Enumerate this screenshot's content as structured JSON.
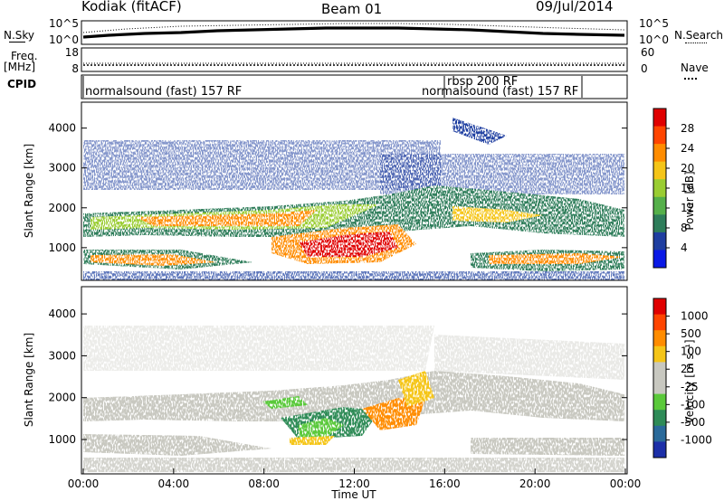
{
  "header": {
    "radar": "Kodiak (fitACF)",
    "beam": "Beam 01",
    "date": "09/Jul/2014"
  },
  "panels": {
    "nsky_label": "N.Sky",
    "nsearch_label": "N.Search",
    "nave_label": "Nave",
    "freq_label": "Freq.",
    "freq_unit": "[MHz]",
    "cpid_label": "CPID",
    "nsky_ticks": [
      "10^5",
      "10^0"
    ],
    "nsearch_ticks": [
      "10^5",
      "10^0"
    ],
    "freq_ticks": [
      "18",
      "8"
    ],
    "nave_ticks": [
      "60",
      "0"
    ],
    "cpid_entries": [
      "normalsound (fast) 157 RF",
      "rbsp 200 RF",
      "normalsound (fast) 157 RF"
    ]
  },
  "chart_data": [
    {
      "type": "heatmap",
      "name": "power",
      "ylabel": "Slant Range [km]",
      "yticks": [
        1000,
        2000,
        3000,
        4000
      ],
      "ylim": [
        180,
        4650
      ],
      "colorbar_label": "Power [dB]",
      "colorbar_ticks": [
        "28",
        "24",
        "20",
        "16",
        "12",
        "8",
        "4"
      ],
      "colorbar_colors": [
        "#0a19e6",
        "#1f3ea0",
        "#2e7d5a",
        "#55b04a",
        "#9acd32",
        "#f5c518",
        "#ff8c00",
        "#ff4500",
        "#e00000"
      ]
    },
    {
      "type": "heatmap",
      "name": "velocity",
      "ylabel": "Slant Range [km]",
      "yticks": [
        1000,
        2000,
        3000,
        4000
      ],
      "ylim": [
        180,
        4650
      ],
      "colorbar_label": "Velocity [m s⁻¹]",
      "colorbar_ticks": [
        "1000",
        "500",
        "100",
        "25",
        "-25",
        "-100",
        "-500",
        "-1000"
      ],
      "colorbar_colors": [
        "#1c2fa8",
        "#2a6a9a",
        "#2e8b57",
        "#5ac93a",
        "#c8c8c0",
        "#c8c8c0",
        "#f5c518",
        "#ff8c00",
        "#ff4500",
        "#e00000"
      ]
    }
  ],
  "xaxis": {
    "label": "Time UT",
    "ticks": [
      "00:00",
      "04:00",
      "08:00",
      "12:00",
      "16:00",
      "20:00",
      "00:00"
    ]
  }
}
